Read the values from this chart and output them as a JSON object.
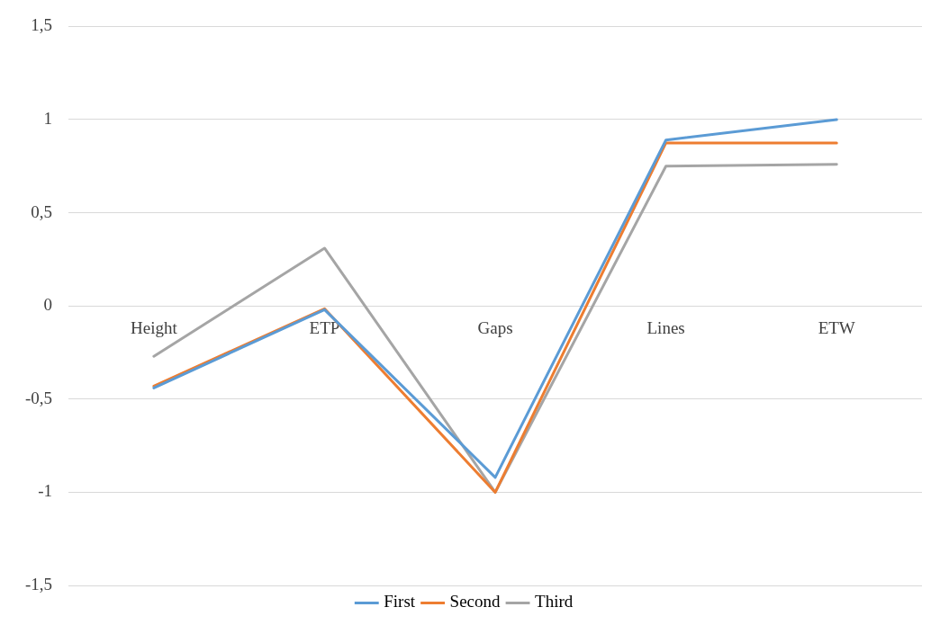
{
  "chart_data": {
    "type": "line",
    "categories": [
      "Height",
      "ETP",
      "Gaps",
      "Lines",
      "ETW"
    ],
    "series": [
      {
        "name": "First",
        "color": "#5b9bd5",
        "values": [
          -0.44,
          -0.02,
          -0.92,
          0.89,
          1.0
        ]
      },
      {
        "name": "Second",
        "color": "#ed7d31",
        "values": [
          -0.43,
          -0.015,
          -1,
          0.875,
          0.875
        ]
      },
      {
        "name": "Third",
        "color": "#a5a5a5",
        "values": [
          -0.27,
          0.31,
          -1,
          0.75,
          0.76
        ]
      }
    ],
    "ylim": [
      -1.5,
      1.5
    ],
    "yticks": [
      {
        "value": -1.5,
        "label": "-1,5"
      },
      {
        "value": -1,
        "label": "-1"
      },
      {
        "value": -0.5,
        "label": "-0,5"
      },
      {
        "value": 0,
        "label": "0"
      },
      {
        "value": 0.5,
        "label": "0,5"
      },
      {
        "value": 1,
        "label": "1"
      },
      {
        "value": 1.5,
        "label": "1,5"
      }
    ],
    "grid": "y",
    "legend": "bottom",
    "marker": "none",
    "line_style": "solid"
  }
}
